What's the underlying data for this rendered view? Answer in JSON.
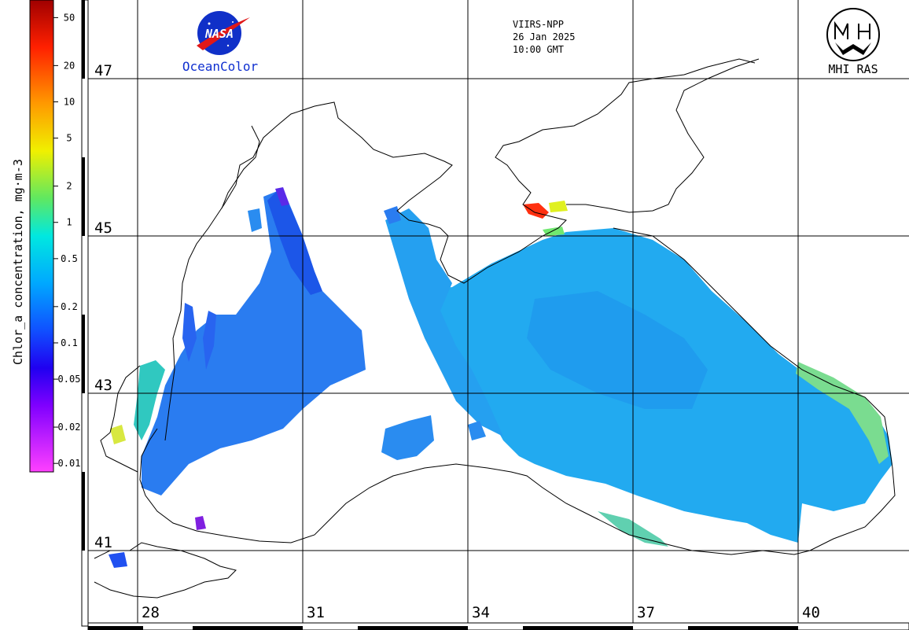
{
  "header": {
    "sensor": "VIIRS-NPP",
    "date": "26 Jan 2025",
    "time": "10:00 GMT"
  },
  "logos": {
    "nasa_text": "NASA",
    "oceancolor": "OceanColor",
    "mhi": "MHI RAS"
  },
  "colorbar": {
    "title": "Chlor_a concentration, mg·m-3",
    "ticks": [
      "50",
      "20",
      "10",
      "5",
      "2",
      "1",
      "0.5",
      "0.2",
      "0.1",
      "0.05",
      "0.02",
      "0.01"
    ]
  },
  "lat_labels": [
    "47",
    "45",
    "43",
    "41"
  ],
  "lon_labels": [
    "28",
    "31",
    "34",
    "37",
    "40"
  ],
  "colors": {
    "very_low": "#ff00ff",
    "low": "#2233ff",
    "mid": "#00c8ff",
    "high": "#ffff00",
    "very_high": "#ff0000",
    "water_main": "#22aaf0",
    "water_west": "#2a7cf0",
    "water_shelf": "#1c56e8"
  }
}
